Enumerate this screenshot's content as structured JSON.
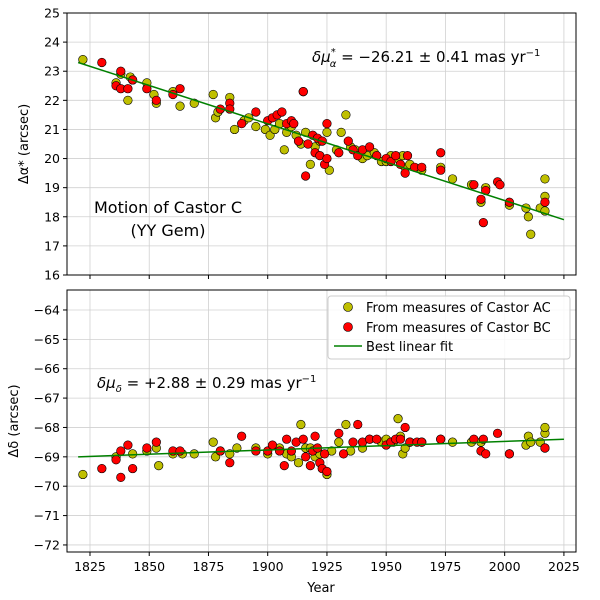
{
  "chart_data": [
    {
      "type": "scatter",
      "ylabel": "Δα* (arcsec)",
      "xlim": [
        1815.3,
        2030.1
      ],
      "ylim": [
        16,
        25
      ],
      "yticks": [
        16,
        17,
        18,
        19,
        20,
        21,
        22,
        23,
        24,
        25
      ],
      "xticks": [
        1825,
        1850,
        1875,
        1900,
        1925,
        1950,
        1975,
        2000,
        2025
      ],
      "grid": true,
      "annotation": "δμα* = −26.21 ± 0.41 mas yr⁻¹",
      "annotation_parts": {
        "sym": "δμ",
        "sup": "*",
        "sub": "α",
        "text": " = −26.21 ±  0.41 mas yr",
        "exp": "−1"
      },
      "title_lines": [
        "Motion of Castor C",
        "(YY Gem)"
      ],
      "series": [
        {
          "name": "From measures of Castor AC",
          "color": "#bfbf00",
          "points": [
            [
              1822,
              23.4
            ],
            [
              1836,
              22.6
            ],
            [
              1838,
              22.9
            ],
            [
              1841,
              22.0
            ],
            [
              1842,
              22.8
            ],
            [
              1843,
              22.7
            ],
            [
              1849,
              22.6
            ],
            [
              1852,
              22.2
            ],
            [
              1853,
              21.9
            ],
            [
              1860,
              22.3
            ],
            [
              1863,
              21.8
            ],
            [
              1869,
              21.9
            ],
            [
              1877,
              22.2
            ],
            [
              1878,
              21.4
            ],
            [
              1879,
              21.6
            ],
            [
              1884,
              22.1
            ],
            [
              1886,
              21.0
            ],
            [
              1890,
              21.3
            ],
            [
              1892,
              21.4
            ],
            [
              1895,
              21.1
            ],
            [
              1899,
              21.0
            ],
            [
              1901,
              20.8
            ],
            [
              1903,
              21.0
            ],
            [
              1905,
              21.2
            ],
            [
              1907,
              20.3
            ],
            [
              1908,
              20.9
            ],
            [
              1910,
              21.1
            ],
            [
              1912,
              20.8
            ],
            [
              1914,
              20.5
            ],
            [
              1915,
              22.3
            ],
            [
              1916,
              20.9
            ],
            [
              1918,
              19.8
            ],
            [
              1920,
              20.4
            ],
            [
              1922,
              20.6
            ],
            [
              1925,
              20.9
            ],
            [
              1926,
              19.6
            ],
            [
              1929,
              20.3
            ],
            [
              1931,
              20.9
            ],
            [
              1933,
              21.5
            ],
            [
              1935,
              20.4
            ],
            [
              1937,
              20.3
            ],
            [
              1940,
              20.0
            ],
            [
              1942,
              20.1
            ],
            [
              1945,
              20.2
            ],
            [
              1948,
              19.9
            ],
            [
              1950,
              19.9
            ],
            [
              1952,
              20.1
            ],
            [
              1955,
              20.0
            ],
            [
              1957,
              20.1
            ],
            [
              1958,
              19.7
            ],
            [
              1960,
              19.8
            ],
            [
              1965,
              19.6
            ],
            [
              1973,
              19.7
            ],
            [
              1978,
              19.3
            ],
            [
              1986,
              19.1
            ],
            [
              1990,
              18.5
            ],
            [
              1992,
              19.0
            ],
            [
              2002,
              18.4
            ],
            [
              2009,
              18.3
            ],
            [
              2010,
              18.0
            ],
            [
              2011,
              17.4
            ],
            [
              2015,
              18.3
            ],
            [
              2017,
              18.2
            ],
            [
              2017,
              18.7
            ],
            [
              2017,
              19.3
            ]
          ]
        },
        {
          "name": "From measures of Castor BC",
          "color": "#ff0000",
          "points": [
            [
              1830,
              23.3
            ],
            [
              1836,
              22.5
            ],
            [
              1838,
              22.4
            ],
            [
              1838,
              23.0
            ],
            [
              1841,
              22.4
            ],
            [
              1843,
              22.7
            ],
            [
              1849,
              22.4
            ],
            [
              1853,
              22.0
            ],
            [
              1860,
              22.2
            ],
            [
              1863,
              22.4
            ],
            [
              1880,
              21.7
            ],
            [
              1884,
              21.9
            ],
            [
              1884,
              21.7
            ],
            [
              1889,
              21.2
            ],
            [
              1895,
              21.6
            ],
            [
              1900,
              21.3
            ],
            [
              1902,
              21.4
            ],
            [
              1904,
              21.5
            ],
            [
              1906,
              21.6
            ],
            [
              1908,
              21.2
            ],
            [
              1910,
              21.3
            ],
            [
              1911,
              21.2
            ],
            [
              1913,
              20.6
            ],
            [
              1915,
              22.3
            ],
            [
              1916,
              19.4
            ],
            [
              1917,
              20.5
            ],
            [
              1919,
              20.8
            ],
            [
              1920,
              20.2
            ],
            [
              1921,
              20.7
            ],
            [
              1922,
              20.1
            ],
            [
              1923,
              20.6
            ],
            [
              1924,
              19.8
            ],
            [
              1925,
              21.2
            ],
            [
              1925,
              20.0
            ],
            [
              1930,
              20.2
            ],
            [
              1934,
              20.6
            ],
            [
              1936,
              20.3
            ],
            [
              1938,
              20.1
            ],
            [
              1940,
              20.3
            ],
            [
              1943,
              20.4
            ],
            [
              1946,
              20.1
            ],
            [
              1950,
              20.0
            ],
            [
              1952,
              19.9
            ],
            [
              1954,
              20.1
            ],
            [
              1956,
              19.8
            ],
            [
              1958,
              19.5
            ],
            [
              1959,
              20.1
            ],
            [
              1962,
              19.7
            ],
            [
              1965,
              19.7
            ],
            [
              1973,
              20.2
            ],
            [
              1973,
              19.6
            ],
            [
              1987,
              19.1
            ],
            [
              1990,
              18.6
            ],
            [
              1991,
              17.8
            ],
            [
              1992,
              18.9
            ],
            [
              1997,
              19.2
            ],
            [
              1998,
              19.1
            ],
            [
              2002,
              18.5
            ],
            [
              2017,
              18.5
            ]
          ]
        }
      ],
      "fit": {
        "name": "Best linear fit",
        "color": "#008000",
        "x": [
          1820,
          2025
        ],
        "y": [
          23.3,
          17.9
        ]
      }
    },
    {
      "type": "scatter",
      "xlabel": "Year",
      "ylabel": "Δδ (arcsec)",
      "xlim": [
        1815.3,
        2030.1
      ],
      "ylim": [
        -72.24,
        -63.32
      ],
      "yticks": [
        -72,
        -71,
        -70,
        -69,
        -68,
        -67,
        -66,
        -65,
        -64
      ],
      "xticks": [
        1825,
        1850,
        1875,
        1900,
        1925,
        1950,
        1975,
        2000,
        2025
      ],
      "grid": true,
      "legend": "top-right",
      "annotation": "δμδ = +2.88 ± 0.29 mas yr⁻¹",
      "annotation_parts": {
        "sym": "δμ",
        "sub": "δ",
        "text": " = +2.88 ±  0.29 mas yr",
        "exp": "−1"
      },
      "series": [
        {
          "name": "From measures of Castor AC",
          "color": "#bfbf00",
          "points": [
            [
              1822,
              -69.6
            ],
            [
              1836,
              -69.0
            ],
            [
              1843,
              -68.9
            ],
            [
              1849,
              -68.8
            ],
            [
              1853,
              -68.7
            ],
            [
              1854,
              -69.3
            ],
            [
              1860,
              -68.9
            ],
            [
              1864,
              -68.9
            ],
            [
              1869,
              -68.9
            ],
            [
              1877,
              -68.5
            ],
            [
              1878,
              -69.0
            ],
            [
              1880,
              -68.8
            ],
            [
              1884,
              -68.9
            ],
            [
              1887,
              -68.7
            ],
            [
              1895,
              -68.7
            ],
            [
              1900,
              -68.9
            ],
            [
              1905,
              -68.7
            ],
            [
              1908,
              -68.9
            ],
            [
              1910,
              -69.0
            ],
            [
              1913,
              -69.2
            ],
            [
              1914,
              -67.9
            ],
            [
              1916,
              -68.7
            ],
            [
              1918,
              -68.7
            ],
            [
              1920,
              -69.0
            ],
            [
              1922,
              -68.9
            ],
            [
              1925,
              -69.6
            ],
            [
              1927,
              -68.8
            ],
            [
              1930,
              -68.5
            ],
            [
              1933,
              -67.9
            ],
            [
              1935,
              -68.8
            ],
            [
              1940,
              -68.7
            ],
            [
              1943,
              -68.4
            ],
            [
              1948,
              -68.5
            ],
            [
              1950,
              -68.4
            ],
            [
              1953,
              -68.5
            ],
            [
              1955,
              -67.7
            ],
            [
              1956,
              -68.3
            ],
            [
              1957,
              -68.9
            ],
            [
              1958,
              -68.7
            ],
            [
              1960,
              -68.5
            ],
            [
              1965,
              -68.5
            ],
            [
              1973,
              -68.4
            ],
            [
              1978,
              -68.5
            ],
            [
              1986,
              -68.5
            ],
            [
              1990,
              -68.5
            ],
            [
              2002,
              -68.9
            ],
            [
              2009,
              -68.6
            ],
            [
              2010,
              -68.3
            ],
            [
              2011,
              -68.5
            ],
            [
              2015,
              -68.5
            ],
            [
              2017,
              -68.2
            ],
            [
              2017,
              -68.0
            ],
            [
              2017,
              -68.7
            ]
          ]
        },
        {
          "name": "From measures of Castor BC",
          "color": "#ff0000",
          "points": [
            [
              1830,
              -69.4
            ],
            [
              1836,
              -69.1
            ],
            [
              1838,
              -69.7
            ],
            [
              1838,
              -68.8
            ],
            [
              1841,
              -68.6
            ],
            [
              1843,
              -69.4
            ],
            [
              1849,
              -68.7
            ],
            [
              1853,
              -68.5
            ],
            [
              1860,
              -68.8
            ],
            [
              1863,
              -68.8
            ],
            [
              1880,
              -68.8
            ],
            [
              1884,
              -69.2
            ],
            [
              1889,
              -68.3
            ],
            [
              1895,
              -68.8
            ],
            [
              1900,
              -68.8
            ],
            [
              1902,
              -68.6
            ],
            [
              1905,
              -68.8
            ],
            [
              1907,
              -69.3
            ],
            [
              1908,
              -68.4
            ],
            [
              1910,
              -68.8
            ],
            [
              1912,
              -68.5
            ],
            [
              1915,
              -68.4
            ],
            [
              1916,
              -69.0
            ],
            [
              1918,
              -69.3
            ],
            [
              1919,
              -68.8
            ],
            [
              1920,
              -68.3
            ],
            [
              1921,
              -68.7
            ],
            [
              1922,
              -69.2
            ],
            [
              1923,
              -69.4
            ],
            [
              1924,
              -68.9
            ],
            [
              1925,
              -69.5
            ],
            [
              1930,
              -68.2
            ],
            [
              1932,
              -68.9
            ],
            [
              1936,
              -68.5
            ],
            [
              1938,
              -67.9
            ],
            [
              1940,
              -68.5
            ],
            [
              1943,
              -68.4
            ],
            [
              1946,
              -68.4
            ],
            [
              1950,
              -68.6
            ],
            [
              1952,
              -68.5
            ],
            [
              1954,
              -68.4
            ],
            [
              1956,
              -68.4
            ],
            [
              1958,
              -68.0
            ],
            [
              1960,
              -68.5
            ],
            [
              1963,
              -68.5
            ],
            [
              1965,
              -68.5
            ],
            [
              1973,
              -68.4
            ],
            [
              1987,
              -68.4
            ],
            [
              1990,
              -68.8
            ],
            [
              1991,
              -68.4
            ],
            [
              1992,
              -68.9
            ],
            [
              1997,
              -68.2
            ],
            [
              2002,
              -68.9
            ],
            [
              2017,
              -68.7
            ]
          ]
        }
      ],
      "fit": {
        "name": "Best linear fit",
        "color": "#008000",
        "x": [
          1820,
          2025
        ],
        "y": [
          -69.0,
          -68.4
        ]
      }
    }
  ]
}
